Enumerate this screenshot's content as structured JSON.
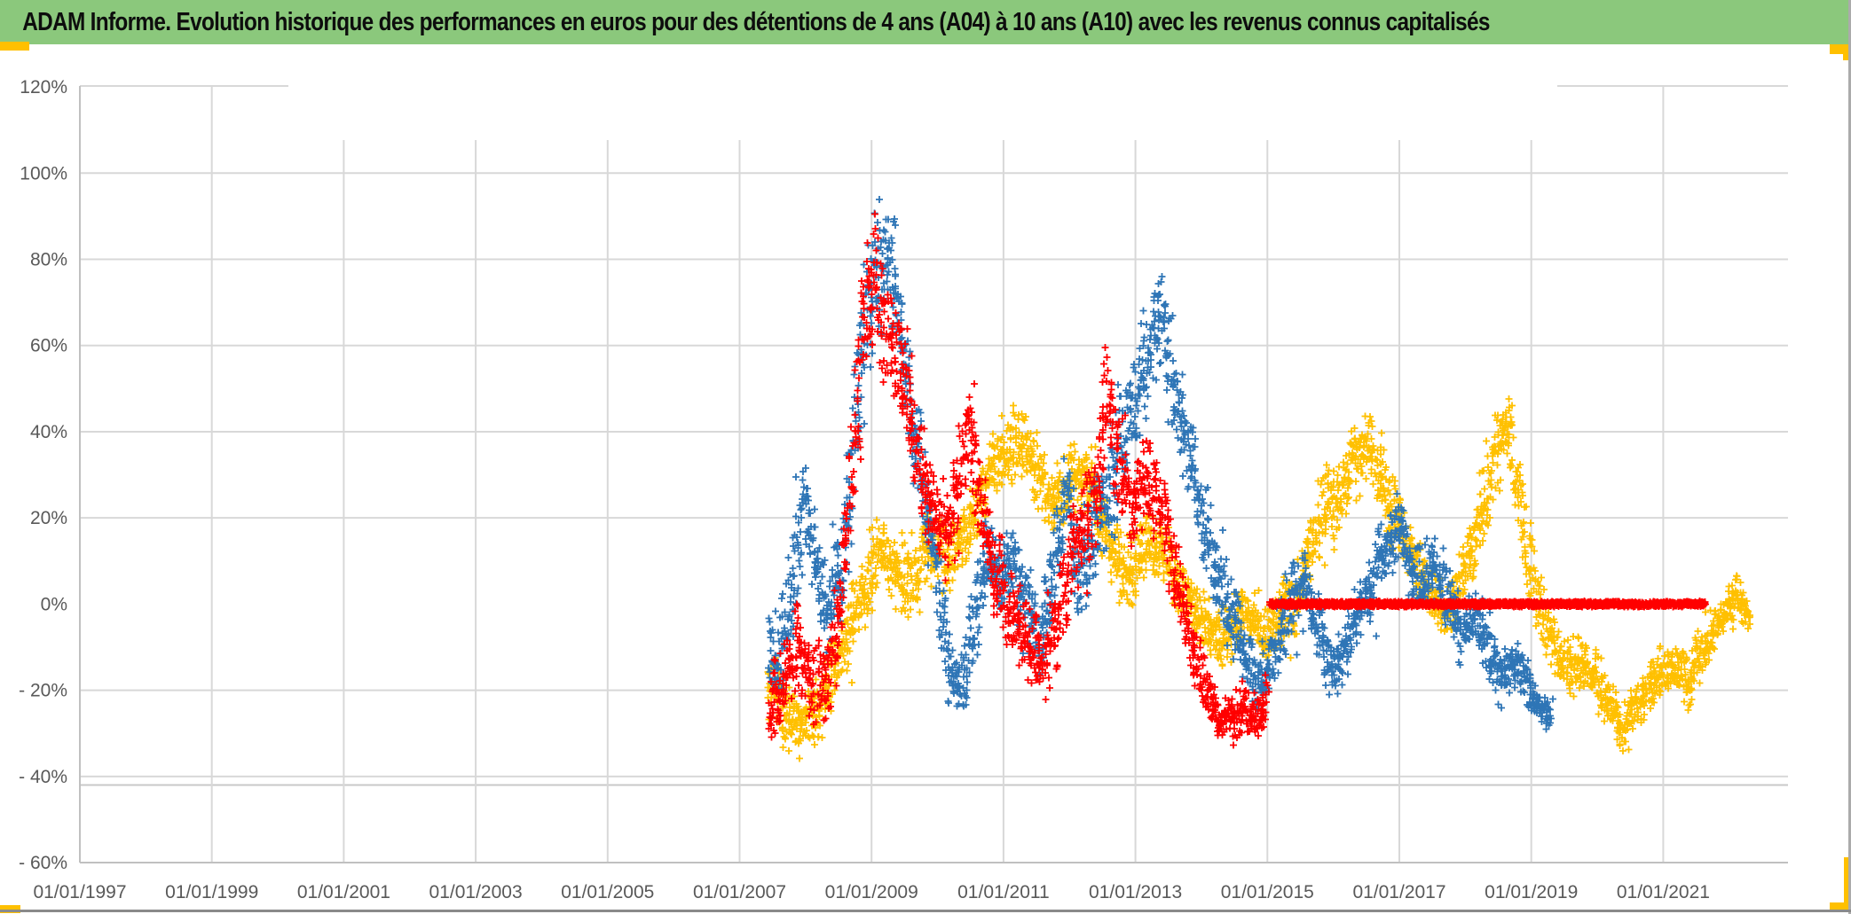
{
  "header": {
    "title": "ADAM Informe. Evolution historique des performances en euros pour des détentions de 4 ans (A04) à 10 ans (A10) avec les revenus connus capitalisés",
    "background": "#8BC87C",
    "text_color": "#0d0d0d"
  },
  "window": {
    "right_edge_color": "#ABABAB",
    "bottom_edge_color": "#8A8A8A",
    "corner_marks_color": "#FFC000"
  },
  "chart_data": {
    "type": "scatter",
    "title": "ADAM Informe. Evolution historique des performances en euros pour des détentions de 4 ans (A04) à 10 ans (A10) avec les revenus connus capitalisés",
    "marker": "plus",
    "grid_color": "#D8D8D8",
    "axis_color": "#C0C0C0",
    "label_color": "#595959",
    "extra_rule_pct": -42,
    "x_axis": {
      "tick_labels": [
        "01/01/1997",
        "01/01/1999",
        "01/01/2001",
        "01/01/2003",
        "01/01/2005",
        "01/01/2007",
        "01/01/2009",
        "01/01/2011",
        "01/01/2013",
        "01/01/2015",
        "01/01/2017",
        "01/01/2019",
        "01/01/2021"
      ],
      "tick_years": [
        1997,
        1999,
        2001,
        2003,
        2005,
        2007,
        2009,
        2011,
        2013,
        2015,
        2017,
        2019,
        2021
      ],
      "min_year": 1997,
      "max_year": 2022.9,
      "gridlines": true
    },
    "y_axis": {
      "tick_labels": [
        "120%",
        "100%",
        "80%",
        "60%",
        "40%",
        "20%",
        "0%",
        "- 20%",
        "- 40%",
        "- 60%"
      ],
      "tick_values": [
        120,
        100,
        80,
        60,
        40,
        20,
        0,
        -20,
        -40,
        -60
      ],
      "min": -60,
      "max": 120,
      "step": 20,
      "unit": "%",
      "zero_gridline": false
    },
    "series": [
      {
        "name": "series-gold",
        "color": "#FFC000",
        "span_years": [
          2007.45,
          2022.3
        ],
        "band_keyframes": [
          [
            2007.45,
            -20,
            11
          ],
          [
            2007.7,
            -25,
            8
          ],
          [
            2007.95,
            -28,
            6
          ],
          [
            2008.2,
            -23,
            8
          ],
          [
            2008.45,
            -14,
            8
          ],
          [
            2008.7,
            -5,
            8
          ],
          [
            2008.95,
            6,
            9
          ],
          [
            2009.15,
            13,
            8
          ],
          [
            2009.35,
            8,
            8
          ],
          [
            2009.55,
            5,
            8
          ],
          [
            2009.75,
            10,
            8
          ],
          [
            2009.95,
            14,
            8
          ],
          [
            2010.15,
            10,
            8
          ],
          [
            2010.35,
            16,
            8
          ],
          [
            2010.55,
            20,
            8
          ],
          [
            2010.75,
            28,
            8
          ],
          [
            2010.95,
            34,
            9
          ],
          [
            2011.15,
            36,
            9
          ],
          [
            2011.3,
            38,
            9
          ],
          [
            2011.5,
            30,
            8
          ],
          [
            2011.7,
            24,
            8
          ],
          [
            2011.9,
            25,
            8
          ],
          [
            2012.1,
            30,
            8
          ],
          [
            2012.3,
            28,
            9
          ],
          [
            2012.5,
            20,
            9
          ],
          [
            2012.7,
            12,
            9
          ],
          [
            2012.9,
            6,
            8
          ],
          [
            2013.1,
            12,
            8
          ],
          [
            2013.3,
            15,
            8
          ],
          [
            2013.5,
            10,
            8
          ],
          [
            2013.7,
            4,
            8
          ],
          [
            2013.9,
            -2,
            7
          ],
          [
            2014.1,
            -6,
            7
          ],
          [
            2014.3,
            -9,
            7
          ],
          [
            2014.5,
            -5,
            7
          ],
          [
            2014.7,
            -2,
            7
          ],
          [
            2014.9,
            -6,
            7
          ],
          [
            2015.1,
            -8,
            7
          ],
          [
            2015.3,
            -2,
            8
          ],
          [
            2015.5,
            6,
            8
          ],
          [
            2015.7,
            14,
            9
          ],
          [
            2015.9,
            22,
            9
          ],
          [
            2016.1,
            28,
            9
          ],
          [
            2016.3,
            33,
            9
          ],
          [
            2016.5,
            37,
            8
          ],
          [
            2016.7,
            30,
            9
          ],
          [
            2016.9,
            22,
            9
          ],
          [
            2017.1,
            14,
            8
          ],
          [
            2017.3,
            7,
            8
          ],
          [
            2017.5,
            2,
            7
          ],
          [
            2017.7,
            -3,
            7
          ],
          [
            2017.9,
            3,
            8
          ],
          [
            2018.1,
            12,
            9
          ],
          [
            2018.3,
            25,
            10
          ],
          [
            2018.5,
            38,
            9
          ],
          [
            2018.65,
            42,
            8
          ],
          [
            2018.8,
            28,
            9
          ],
          [
            2018.95,
            12,
            9
          ],
          [
            2019.15,
            -2,
            8
          ],
          [
            2019.35,
            -12,
            7
          ],
          [
            2019.55,
            -15,
            6
          ],
          [
            2019.75,
            -14,
            6
          ],
          [
            2019.95,
            -17,
            6
          ],
          [
            2020.15,
            -22,
            6
          ],
          [
            2020.35,
            -29,
            5
          ],
          [
            2020.55,
            -24,
            6
          ],
          [
            2020.75,
            -20,
            6
          ],
          [
            2020.95,
            -17,
            6
          ],
          [
            2021.15,
            -15,
            6
          ],
          [
            2021.35,
            -18,
            6
          ],
          [
            2021.55,
            -12,
            6
          ],
          [
            2021.75,
            -6,
            6
          ],
          [
            2021.95,
            -1,
            5
          ],
          [
            2022.15,
            1,
            5
          ],
          [
            2022.3,
            -3,
            4
          ]
        ]
      },
      {
        "name": "series-blue",
        "color": "#2E75B6",
        "span_years": [
          2007.45,
          2019.3
        ],
        "band_keyframes": [
          [
            2007.45,
            -12,
            11
          ],
          [
            2007.65,
            -8,
            10
          ],
          [
            2007.85,
            8,
            12
          ],
          [
            2008.0,
            24,
            11
          ],
          [
            2008.15,
            12,
            10
          ],
          [
            2008.35,
            -2,
            10
          ],
          [
            2008.55,
            8,
            12
          ],
          [
            2008.7,
            30,
            15
          ],
          [
            2008.85,
            55,
            18
          ],
          [
            2009.0,
            72,
            16
          ],
          [
            2009.2,
            80,
            13
          ],
          [
            2009.35,
            78,
            14
          ],
          [
            2009.5,
            52,
            12
          ],
          [
            2009.65,
            42,
            12
          ],
          [
            2009.8,
            25,
            10
          ],
          [
            2010.0,
            5,
            10
          ],
          [
            2010.2,
            -15,
            9
          ],
          [
            2010.35,
            -20,
            8
          ],
          [
            2010.55,
            -5,
            10
          ],
          [
            2010.75,
            12,
            9
          ],
          [
            2010.95,
            5,
            9
          ],
          [
            2011.15,
            10,
            9
          ],
          [
            2011.35,
            0,
            10
          ],
          [
            2011.55,
            -8,
            9
          ],
          [
            2011.75,
            5,
            12
          ],
          [
            2011.95,
            25,
            14
          ],
          [
            2012.15,
            10,
            13
          ],
          [
            2012.35,
            15,
            12
          ],
          [
            2012.55,
            22,
            12
          ],
          [
            2012.8,
            38,
            13
          ],
          [
            2013.0,
            48,
            13
          ],
          [
            2013.2,
            60,
            13
          ],
          [
            2013.38,
            68,
            11
          ],
          [
            2013.55,
            52,
            12
          ],
          [
            2013.75,
            38,
            11
          ],
          [
            2013.95,
            25,
            10
          ],
          [
            2014.15,
            10,
            9
          ],
          [
            2014.35,
            0,
            9
          ],
          [
            2014.55,
            -8,
            8
          ],
          [
            2014.75,
            -14,
            7
          ],
          [
            2014.95,
            -18,
            7
          ],
          [
            2015.15,
            -8,
            9
          ],
          [
            2015.35,
            2,
            10
          ],
          [
            2015.55,
            5,
            9
          ],
          [
            2015.75,
            -6,
            8
          ],
          [
            2015.95,
            -15,
            7
          ],
          [
            2016.15,
            -12,
            7
          ],
          [
            2016.35,
            -5,
            8
          ],
          [
            2016.55,
            4,
            8
          ],
          [
            2016.75,
            12,
            8
          ],
          [
            2016.95,
            18,
            7
          ],
          [
            2017.15,
            10,
            8
          ],
          [
            2017.35,
            4,
            8
          ],
          [
            2017.55,
            8,
            7
          ],
          [
            2017.75,
            0,
            7
          ],
          [
            2017.95,
            -7,
            7
          ],
          [
            2018.15,
            -4,
            7
          ],
          [
            2018.35,
            -10,
            7
          ],
          [
            2018.55,
            -17,
            6
          ],
          [
            2018.75,
            -13,
            6
          ],
          [
            2018.95,
            -20,
            6
          ],
          [
            2019.15,
            -25,
            5
          ],
          [
            2019.3,
            -27,
            4
          ]
        ]
      },
      {
        "name": "series-red",
        "color": "#FF0000",
        "span_years": [
          2007.45,
          2015.0
        ],
        "band_keyframes": [
          [
            2007.45,
            -24,
            10
          ],
          [
            2007.65,
            -18,
            10
          ],
          [
            2007.85,
            -10,
            10
          ],
          [
            2008.05,
            -14,
            10
          ],
          [
            2008.25,
            -20,
            9
          ],
          [
            2008.45,
            -10,
            11
          ],
          [
            2008.6,
            10,
            14
          ],
          [
            2008.75,
            40,
            18
          ],
          [
            2008.9,
            65,
            16
          ],
          [
            2009.05,
            75,
            14
          ],
          [
            2009.2,
            65,
            14
          ],
          [
            2009.4,
            55,
            13
          ],
          [
            2009.55,
            50,
            13
          ],
          [
            2009.7,
            35,
            11
          ],
          [
            2009.9,
            24,
            10
          ],
          [
            2010.1,
            18,
            10
          ],
          [
            2010.3,
            25,
            10
          ],
          [
            2010.5,
            42,
            13
          ],
          [
            2010.65,
            25,
            11
          ],
          [
            2010.8,
            10,
            10
          ],
          [
            2011.0,
            2,
            9
          ],
          [
            2011.2,
            -4,
            9
          ],
          [
            2011.4,
            -10,
            9
          ],
          [
            2011.6,
            -14,
            8
          ],
          [
            2011.8,
            -5,
            10
          ],
          [
            2012.0,
            8,
            12
          ],
          [
            2012.2,
            15,
            12
          ],
          [
            2012.45,
            30,
            14
          ],
          [
            2012.6,
            48,
            13
          ],
          [
            2012.75,
            32,
            12
          ],
          [
            2012.95,
            22,
            11
          ],
          [
            2013.15,
            28,
            11
          ],
          [
            2013.35,
            24,
            10
          ],
          [
            2013.5,
            15,
            10
          ],
          [
            2013.65,
            5,
            9
          ],
          [
            2013.8,
            -5,
            9
          ],
          [
            2013.95,
            -14,
            7
          ],
          [
            2014.1,
            -22,
            6
          ],
          [
            2014.3,
            -27,
            5
          ],
          [
            2014.5,
            -26,
            5
          ],
          [
            2014.7,
            -24,
            6
          ],
          [
            2014.9,
            -27,
            5
          ],
          [
            2015.0,
            -20,
            8
          ]
        ],
        "zero_segment": {
          "from_year": 2015.05,
          "to_year": 2021.63,
          "value_pct": 0
        }
      }
    ]
  }
}
